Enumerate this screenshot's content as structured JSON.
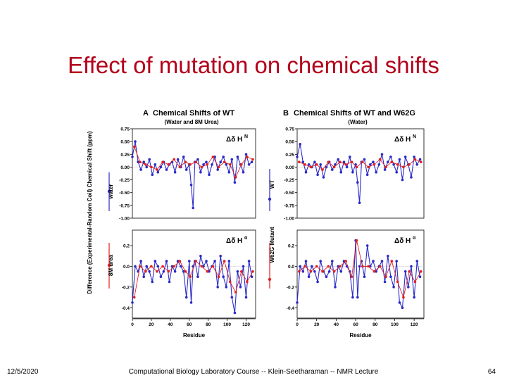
{
  "slide": {
    "title": "Effect of mutation on chemical shifts",
    "date": "12/5/2020",
    "footer": "Computational Biology Laboratory Course -- Klein-Seetharaman -- NMR Lecture",
    "page": "64"
  },
  "colors": {
    "title": "#b3001b",
    "series_a": "#2b2bc8",
    "series_b": "#e02020",
    "axis": "#000000"
  },
  "chart_data": [
    {
      "type": "line",
      "panel_letter": "A",
      "title": "Chemical Shifts of WT",
      "subtitle": "(Water and 8M Urea)",
      "xlabel": "Residue",
      "y_axis_label": "Difference (Experimental-Random Coil) Chemical Shift (ppm)",
      "xlim": [
        0,
        130
      ],
      "x_ticks": [
        "0",
        "20",
        "40",
        "60",
        "80",
        "100",
        "120"
      ],
      "legend": [
        "water",
        "8M urea"
      ],
      "panels": [
        {
          "label": "Δδ H",
          "label_sup": "N",
          "ylim": [
            -1.0,
            0.75
          ],
          "y_ticks": [
            "0.75",
            "0.50",
            "0.25",
            "0.00",
            "-0.25",
            "-0.50",
            "-0.75",
            "-1.00"
          ],
          "series": [
            {
              "name": "water",
              "x": [
                0,
                3,
                6,
                9,
                12,
                15,
                18,
                21,
                24,
                27,
                30,
                33,
                36,
                39,
                42,
                45,
                48,
                51,
                54,
                57,
                60,
                62,
                64,
                66,
                69,
                72,
                75,
                78,
                81,
                84,
                87,
                90,
                93,
                96,
                99,
                102,
                105,
                108,
                111,
                114,
                117,
                120,
                123,
                126
              ],
              "values": [
                0.2,
                0.5,
                0.1,
                -0.05,
                0.1,
                0.0,
                0.15,
                -0.15,
                0.05,
                -0.1,
                0.0,
                0.1,
                -0.05,
                0.05,
                0.1,
                -0.1,
                0.15,
                0.0,
                0.2,
                -0.05,
                0.05,
                -0.35,
                -0.8,
                0.1,
                0.15,
                -0.1,
                0.05,
                0.1,
                -0.15,
                0.05,
                0.2,
                -0.05,
                0.1,
                0.2,
                0.05,
                -0.1,
                0.15,
                -0.3,
                0.2,
                0.05,
                -0.1,
                0.25,
                0.05,
                0.1
              ]
            },
            {
              "name": "8M urea",
              "x": [
                2,
                8,
                14,
                20,
                26,
                32,
                38,
                44,
                50,
                56,
                61,
                67,
                73,
                79,
                85,
                91,
                97,
                103,
                109,
                115,
                121,
                127
              ],
              "values": [
                0.4,
                0.1,
                0.05,
                0.0,
                -0.05,
                0.1,
                0.05,
                0.15,
                0.0,
                0.1,
                0.05,
                0.1,
                0.0,
                0.05,
                0.2,
                0.0,
                0.1,
                0.05,
                -0.2,
                0.05,
                0.2,
                0.15
              ]
            }
          ]
        },
        {
          "label": "Δδ H",
          "label_sup": "α",
          "ylim": [
            -0.5,
            0.35
          ],
          "y_ticks": [
            "0.2",
            "0.0",
            "-0.2",
            "-0.4"
          ],
          "series": [
            {
              "name": "water",
              "x": [
                0,
                3,
                6,
                9,
                12,
                15,
                18,
                21,
                24,
                27,
                30,
                33,
                36,
                39,
                42,
                45,
                48,
                51,
                54,
                57,
                60,
                62,
                64,
                66,
                69,
                72,
                75,
                78,
                81,
                84,
                87,
                90,
                93,
                96,
                99,
                102,
                105,
                108,
                111,
                114,
                117,
                120,
                123,
                126
              ],
              "values": [
                -0.35,
                0.0,
                -0.05,
                0.05,
                -0.1,
                0.0,
                -0.05,
                -0.15,
                0.05,
                0.0,
                -0.1,
                -0.05,
                0.05,
                -0.15,
                0.0,
                -0.05,
                0.05,
                0.0,
                -0.05,
                -0.3,
                0.05,
                -0.35,
                0.0,
                0.05,
                -0.1,
                0.1,
                0.0,
                0.05,
                -0.05,
                0.0,
                0.05,
                -0.2,
                0.1,
                -0.1,
                -0.2,
                0.05,
                -0.3,
                -0.45,
                -0.05,
                -0.2,
                0.0,
                -0.3,
                0.05,
                -0.1
              ]
            },
            {
              "name": "8M urea",
              "x": [
                2,
                8,
                14,
                20,
                26,
                32,
                38,
                44,
                50,
                56,
                61,
                67,
                73,
                79,
                85,
                91,
                97,
                103,
                109,
                115,
                121,
                127
              ],
              "values": [
                -0.3,
                0.0,
                -0.05,
                0.0,
                -0.05,
                0.0,
                -0.05,
                0.0,
                0.05,
                -0.05,
                -0.1,
                0.05,
                0.0,
                -0.05,
                0.0,
                -0.1,
                0.05,
                -0.15,
                -0.25,
                -0.05,
                -0.15,
                -0.05
              ]
            }
          ]
        }
      ]
    },
    {
      "type": "line",
      "panel_letter": "B",
      "title": "Chemical Shifts of WT and W62G",
      "subtitle": "(Water)",
      "xlabel": "Residue",
      "xlim": [
        0,
        130
      ],
      "x_ticks": [
        "0",
        "20",
        "40",
        "60",
        "80",
        "100",
        "120"
      ],
      "legend": [
        "WT",
        "W62G Mutant"
      ],
      "panels": [
        {
          "label": "Δδ H",
          "label_sup": "N",
          "ylim": [
            -1.0,
            0.75
          ],
          "y_ticks": [
            "0.75",
            "0.50",
            "0.25",
            "0.00",
            "-0.25",
            "-0.50",
            "-0.75",
            "-1.00"
          ],
          "series": [
            {
              "name": "WT",
              "x": [
                0,
                3,
                6,
                9,
                12,
                15,
                18,
                21,
                24,
                27,
                30,
                33,
                36,
                39,
                42,
                45,
                48,
                51,
                54,
                57,
                60,
                62,
                64,
                66,
                69,
                72,
                75,
                78,
                81,
                84,
                87,
                90,
                93,
                96,
                99,
                102,
                105,
                108,
                111,
                114,
                117,
                120,
                123,
                126
              ],
              "values": [
                0.2,
                0.45,
                0.1,
                -0.1,
                0.05,
                0.0,
                0.1,
                -0.15,
                0.05,
                -0.2,
                0.0,
                0.1,
                -0.05,
                0.05,
                0.15,
                -0.1,
                0.1,
                0.0,
                0.2,
                -0.1,
                0.05,
                -0.3,
                -0.7,
                0.1,
                0.15,
                -0.15,
                0.05,
                0.1,
                -0.1,
                0.05,
                0.25,
                -0.05,
                0.1,
                0.2,
                0.05,
                -0.1,
                0.15,
                -0.25,
                0.2,
                0.05,
                -0.2,
                0.2,
                0.05,
                0.15
              ]
            },
            {
              "name": "W62G Mutant",
              "x": [
                2,
                8,
                14,
                20,
                26,
                32,
                38,
                44,
                50,
                56,
                61,
                67,
                73,
                79,
                85,
                91,
                97,
                103,
                109,
                115,
                121,
                127
              ],
              "values": [
                0.1,
                0.05,
                0.0,
                0.05,
                -0.05,
                0.1,
                0.0,
                0.1,
                0.05,
                0.1,
                0.0,
                0.1,
                0.0,
                0.05,
                0.15,
                0.0,
                0.1,
                0.05,
                0.0,
                0.05,
                0.15,
                0.1
              ]
            }
          ]
        },
        {
          "label": "Δδ H",
          "label_sup": "α",
          "ylim": [
            -0.5,
            0.35
          ],
          "y_ticks": [
            "0.2",
            "0.0",
            "-0.2",
            "-0.4"
          ],
          "series": [
            {
              "name": "WT",
              "x": [
                0,
                3,
                6,
                9,
                12,
                15,
                18,
                21,
                24,
                27,
                30,
                33,
                36,
                39,
                42,
                45,
                48,
                51,
                54,
                57,
                60,
                62,
                64,
                66,
                69,
                72,
                75,
                78,
                81,
                84,
                87,
                90,
                93,
                96,
                99,
                102,
                105,
                108,
                111,
                114,
                117,
                120,
                123,
                126
              ],
              "values": [
                -0.35,
                0.0,
                -0.05,
                0.05,
                -0.1,
                0.0,
                -0.05,
                -0.15,
                0.05,
                -0.05,
                -0.1,
                -0.05,
                0.05,
                -0.2,
                0.0,
                -0.05,
                0.05,
                0.0,
                -0.05,
                -0.3,
                0.25,
                -0.3,
                0.0,
                0.05,
                -0.1,
                0.2,
                0.0,
                0.05,
                -0.05,
                0.0,
                0.05,
                -0.15,
                0.1,
                -0.1,
                -0.2,
                0.05,
                -0.35,
                -0.4,
                -0.05,
                -0.2,
                0.0,
                -0.3,
                0.05,
                -0.1
              ]
            },
            {
              "name": "W62G Mutant",
              "x": [
                2,
                8,
                14,
                20,
                26,
                32,
                38,
                44,
                50,
                56,
                61,
                67,
                73,
                79,
                85,
                91,
                97,
                103,
                109,
                115,
                121,
                127
              ],
              "values": [
                -0.05,
                0.0,
                -0.05,
                0.0,
                -0.05,
                0.0,
                -0.05,
                0.0,
                0.05,
                -0.1,
                0.25,
                0.0,
                0.0,
                -0.05,
                0.0,
                -0.1,
                0.05,
                -0.15,
                -0.3,
                -0.05,
                -0.15,
                -0.05
              ]
            }
          ]
        }
      ]
    }
  ]
}
